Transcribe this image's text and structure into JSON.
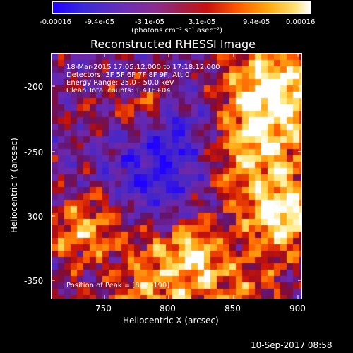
{
  "colorbar": {
    "tick_labels": [
      "-0.00016",
      "-9.4e-05",
      "-3.1e-05",
      "3.1e-05",
      "9.4e-05",
      "0.00016"
    ],
    "units_label": "(photons cm⁻² s⁻¹ asec⁻²)"
  },
  "plot": {
    "title": "Reconstructed RHESSI Image",
    "xlabel": "Heliocentric X (arcsec)",
    "ylabel": "Heliocentric Y (arcsec)",
    "x_ticks": [
      "750",
      "800",
      "850",
      "900"
    ],
    "y_ticks": [
      "-200",
      "-250",
      "-300",
      "-350"
    ],
    "annotations": {
      "time_range": "18-Mar-2015 17:05:12.000 to 17:18:12.000",
      "detectors": "Detectors: 3F 5F 6F 7F 8F 9F, Att 0",
      "energy": "Energy Range: 25.0 - 50.0 keV",
      "clean": "Clean     Total counts: 1.41E+04",
      "peak": "Position of Peak = [842,-190]"
    }
  },
  "footer": {
    "timestamp": "10-Sep-2017 08:58"
  },
  "chart_data": {
    "type": "heatmap",
    "title": "Reconstructed RHESSI Image",
    "xlabel": "Heliocentric X (arcsec)",
    "ylabel": "Heliocentric Y (arcsec)",
    "xlim": [
      712,
      903
    ],
    "ylim": [
      -367,
      -180
    ],
    "colorbar_range": [
      -0.00016,
      0.00016
    ],
    "colormap": "blue-purple-red-orange-yellow-white",
    "peak": [
      842,
      -190
    ]
  }
}
